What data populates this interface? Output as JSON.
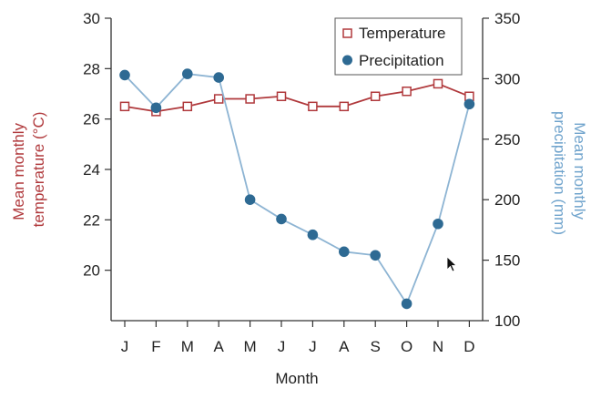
{
  "chart_data": {
    "type": "line",
    "xlabel": "Month",
    "categories": [
      "J",
      "F",
      "M",
      "A",
      "M",
      "J",
      "J",
      "A",
      "S",
      "O",
      "N",
      "D"
    ],
    "left_axis": {
      "label": "Mean monthly temperature (°C)",
      "label_lines": [
        "Mean monthly",
        "temperature (°C)"
      ],
      "ylim": [
        18,
        30
      ],
      "ticks": [
        "20",
        "22",
        "24",
        "26",
        "28",
        "30"
      ],
      "tick_values": [
        20,
        22,
        24,
        26,
        28,
        30
      ]
    },
    "right_axis": {
      "label": "Mean monthly precipitation (mm)",
      "label_lines": [
        "Mean monthly",
        "precipitation (mm)"
      ],
      "ylim": [
        100,
        350
      ],
      "ticks": [
        "100",
        "150",
        "200",
        "250",
        "300",
        "350"
      ],
      "tick_values": [
        100,
        150,
        200,
        250,
        300,
        350
      ]
    },
    "series": [
      {
        "name": "Temperature",
        "axis": "left",
        "marker": "open-square",
        "color": "#b0393c",
        "values": [
          26.5,
          26.3,
          26.5,
          26.8,
          26.8,
          26.9,
          26.5,
          26.5,
          26.9,
          27.1,
          27.4,
          26.9
        ]
      },
      {
        "name": "Precipitation",
        "axis": "right",
        "marker": "filled-circle",
        "color": "#2e6a93",
        "line_color": "#8db4d3",
        "values": [
          303,
          276,
          304,
          301,
          200,
          184,
          171,
          157,
          154,
          114,
          180,
          279
        ]
      }
    ],
    "legend": {
      "position": "top-right",
      "items": [
        "Temperature",
        "Precipitation"
      ]
    },
    "left_label_color": "#b0393c",
    "right_label_color": "#6fa3cc",
    "axis_color": "#333333"
  }
}
